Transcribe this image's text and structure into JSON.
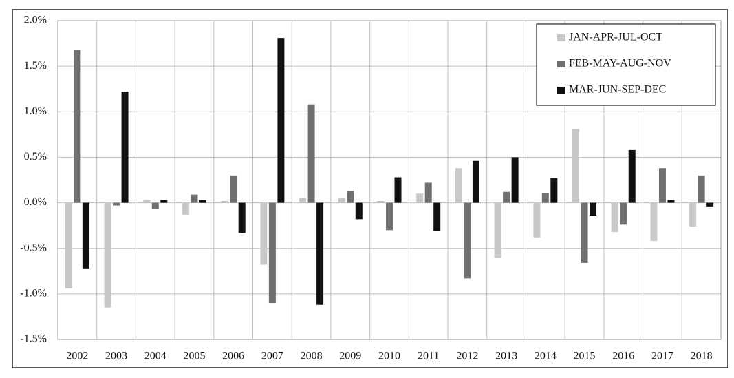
{
  "chart_data": {
    "type": "bar",
    "categories": [
      "2002",
      "2003",
      "2004",
      "2005",
      "2006",
      "2007",
      "2008",
      "2009",
      "2010",
      "2011",
      "2012",
      "2013",
      "2014",
      "2015",
      "2016",
      "2017",
      "2018"
    ],
    "series": [
      {
        "name": "JAN-APR-JUL-OCT",
        "color": "#c8c8c8",
        "values": [
          -0.94,
          -1.15,
          0.03,
          -0.13,
          0.02,
          -0.68,
          0.05,
          0.05,
          0.02,
          0.1,
          0.38,
          -0.6,
          -0.38,
          0.81,
          -0.32,
          -0.42,
          -0.26
        ]
      },
      {
        "name": "FEB-MAY-AUG-NOV",
        "color": "#707070",
        "values": [
          1.68,
          -0.03,
          -0.07,
          0.09,
          0.3,
          -1.1,
          1.08,
          0.13,
          -0.3,
          0.22,
          -0.83,
          0.12,
          0.11,
          -0.66,
          -0.24,
          0.38,
          0.3
        ]
      },
      {
        "name": "MAR-JUN-SEP-DEC",
        "color": "#111111",
        "values": [
          -0.72,
          1.22,
          0.03,
          0.03,
          -0.33,
          1.81,
          -1.12,
          -0.18,
          0.28,
          -0.31,
          0.46,
          0.5,
          0.27,
          -0.14,
          0.58,
          0.03,
          -0.04
        ]
      }
    ],
    "ylim": [
      -1.5,
      2.0
    ],
    "yticks": [
      {
        "value": -1.5,
        "label": "-1.5%"
      },
      {
        "value": -1.0,
        "label": "-1.0%"
      },
      {
        "value": -0.5,
        "label": "-0.5%"
      },
      {
        "value": 0.0,
        "label": "0.0%"
      },
      {
        "value": 0.5,
        "label": "0.5%"
      },
      {
        "value": 1.0,
        "label": "1.0%"
      },
      {
        "value": 1.5,
        "label": "1.5%"
      },
      {
        "value": 2.0,
        "label": "2.0%"
      }
    ],
    "grid": true,
    "legend": "upper right"
  }
}
